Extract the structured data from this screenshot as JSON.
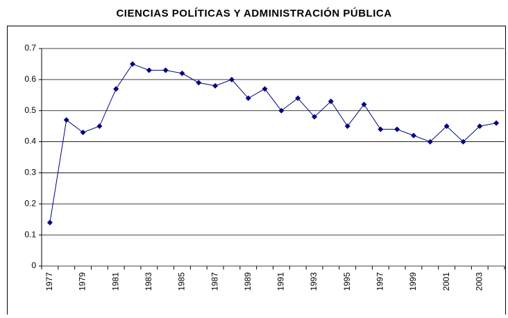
{
  "chart_data": {
    "type": "line",
    "title": "CIENCIAS POLÍTICAS Y ADMINISTRACIÓN PÚBLICA",
    "categories": [
      "1977",
      null,
      "1979",
      null,
      "1981",
      null,
      "1983",
      null,
      "1985",
      null,
      "1987",
      null,
      "1989",
      null,
      "1991",
      null,
      "1993",
      null,
      "1995",
      null,
      "1997",
      null,
      "1999",
      null,
      "2001",
      null,
      "2003",
      null
    ],
    "series": [
      {
        "name": null,
        "color": "#000080",
        "values": [
          0.14,
          0.47,
          0.43,
          0.45,
          0.57,
          0.65,
          0.63,
          0.63,
          0.62,
          0.59,
          0.58,
          0.6,
          0.54,
          0.57,
          0.5,
          0.54,
          0.48,
          0.53,
          0.45,
          0.52,
          0.44,
          0.44,
          0.42,
          0.4,
          0.45,
          0.4,
          0.45,
          0.46
        ]
      }
    ],
    "ylim": [
      0,
      0.7
    ],
    "yticks": [
      0,
      0.1,
      0.2,
      0.3,
      0.4,
      0.5,
      0.6,
      0.7
    ],
    "grid": true
  }
}
